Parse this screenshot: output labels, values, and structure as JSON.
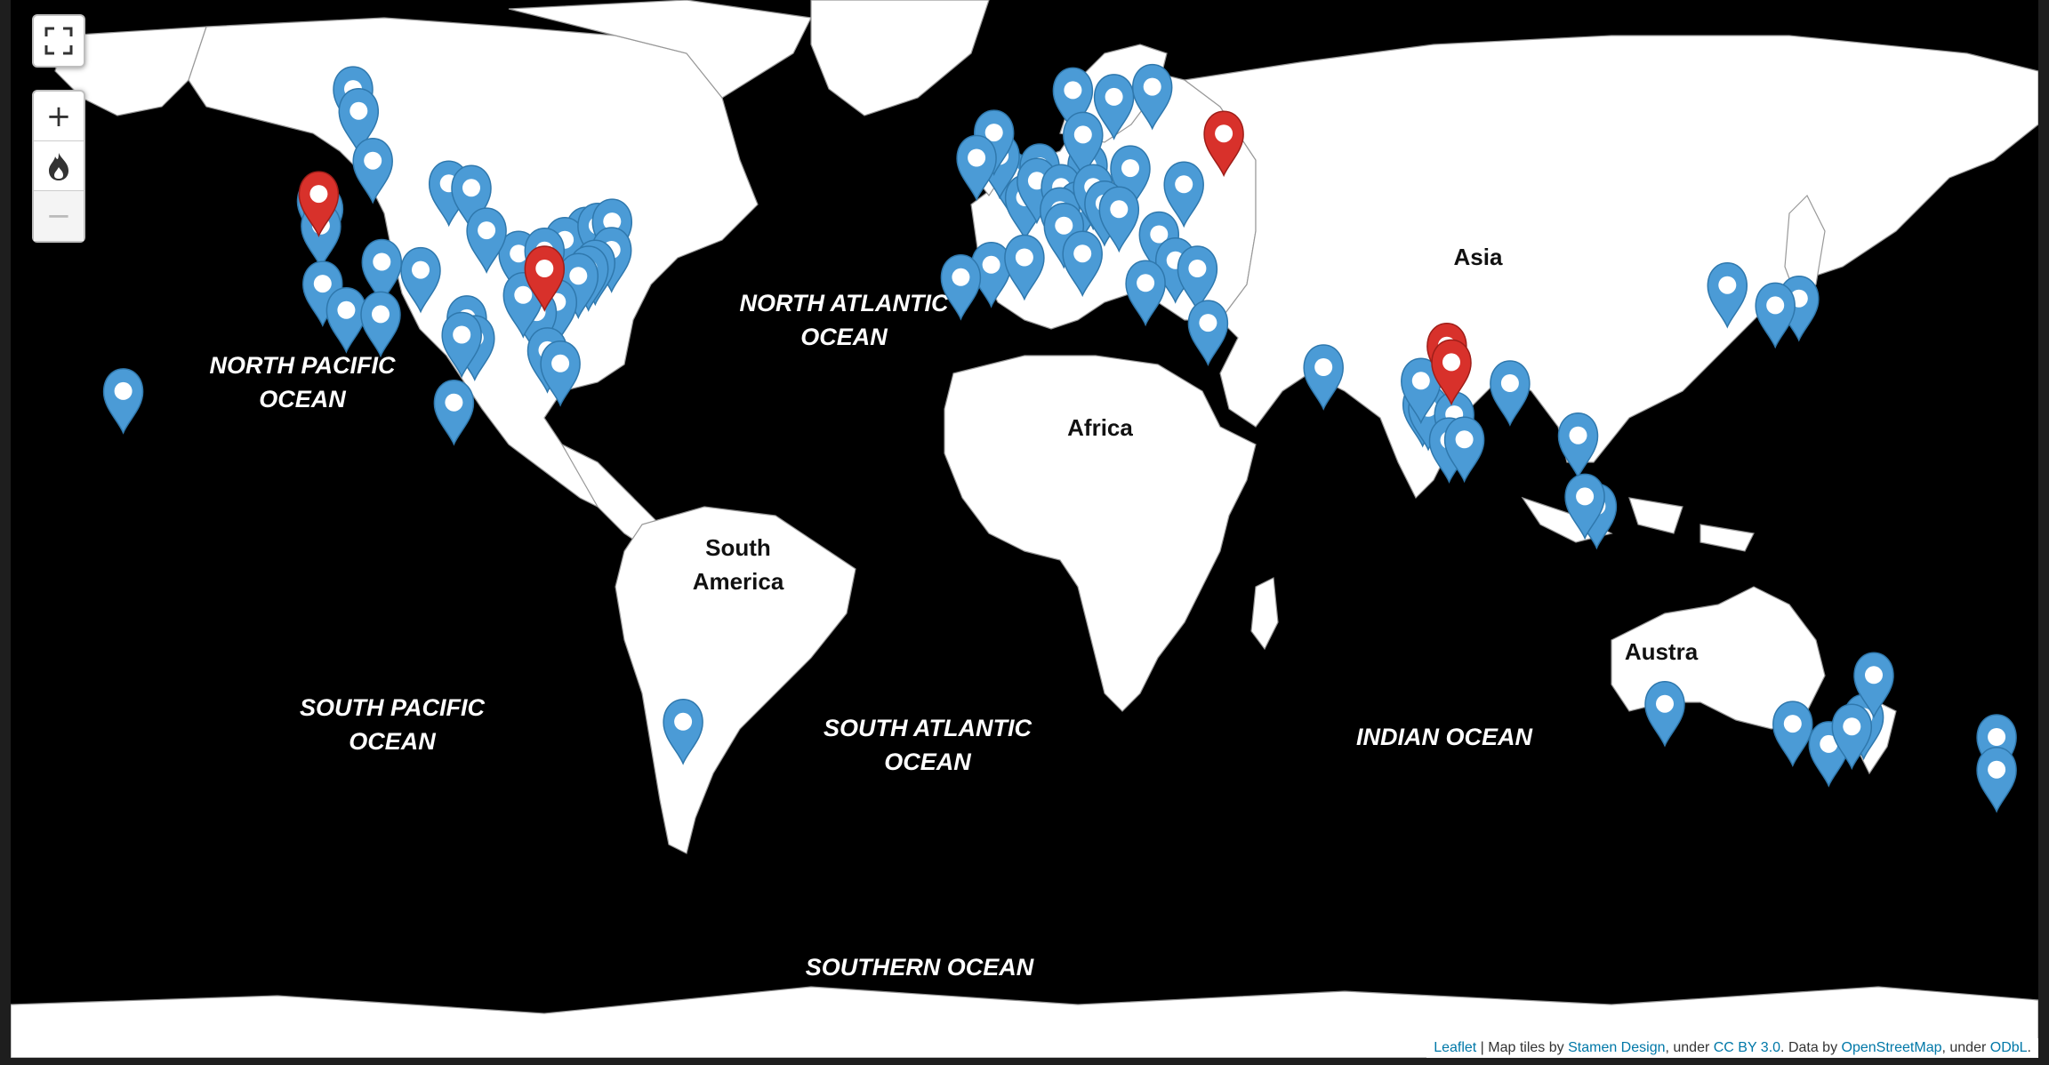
{
  "map": {
    "ocean_labels": [
      {
        "lines": [
          "NORTH ATLANTIC",
          "OCEAN"
        ]
      },
      {
        "lines": [
          "NORTH PACIFIC",
          "OCEAN"
        ]
      },
      {
        "lines": [
          "SOUTH PACIFIC",
          "OCEAN"
        ]
      },
      {
        "lines": [
          "SOUTH ATLANTIC",
          "OCEAN"
        ]
      },
      {
        "lines": [
          "INDIAN OCEAN"
        ]
      },
      {
        "lines": [
          "SOUTHERN OCEAN"
        ]
      }
    ],
    "continent_labels": [
      {
        "lines": [
          "Asia"
        ]
      },
      {
        "lines": [
          "Africa"
        ]
      },
      {
        "lines": [
          "South",
          "America"
        ]
      },
      {
        "lines": [
          "Austra"
        ]
      }
    ],
    "marker_colors": {
      "blue": "#4b9bd6",
      "red": "#d8312b"
    },
    "markers": [
      {
        "lat": 49.3,
        "lon": -123.1,
        "color": "red"
      },
      {
        "lat": 39.9,
        "lon": -83.0,
        "color": "red"
      },
      {
        "lat": 55.8,
        "lon": 37.6,
        "color": "red"
      },
      {
        "lat": 28.6,
        "lon": 77.2,
        "color": "red"
      },
      {
        "lat": 26.0,
        "lon": 78.0,
        "color": "red"
      },
      {
        "lat": 60.0,
        "lon": -117.0,
        "color": "blue"
      },
      {
        "lat": 58.0,
        "lon": -116.0,
        "color": "blue"
      },
      {
        "lat": 53.0,
        "lon": -113.5,
        "color": "blue"
      },
      {
        "lat": 50.5,
        "lon": -100.0,
        "color": "blue"
      },
      {
        "lat": 50.0,
        "lon": -96.0,
        "color": "blue"
      },
      {
        "lat": 48.5,
        "lon": -123.4,
        "color": "blue"
      },
      {
        "lat": 47.6,
        "lon": -122.3,
        "color": "blue"
      },
      {
        "lat": 45.5,
        "lon": -122.7,
        "color": "blue"
      },
      {
        "lat": 45.0,
        "lon": -75.7,
        "color": "blue"
      },
      {
        "lat": 43.7,
        "lon": -79.4,
        "color": "blue"
      },
      {
        "lat": 45.5,
        "lon": -73.6,
        "color": "blue"
      },
      {
        "lat": 46.0,
        "lon": -71.0,
        "color": "blue"
      },
      {
        "lat": 42.4,
        "lon": -71.1,
        "color": "blue"
      },
      {
        "lat": 40.7,
        "lon": -74.0,
        "color": "blue"
      },
      {
        "lat": 39.9,
        "lon": -75.2,
        "color": "blue"
      },
      {
        "lat": 38.9,
        "lon": -77.0,
        "color": "blue"
      },
      {
        "lat": 41.9,
        "lon": -87.6,
        "color": "blue"
      },
      {
        "lat": 44.9,
        "lon": -93.3,
        "color": "blue"
      },
      {
        "lat": 42.3,
        "lon": -83.0,
        "color": "blue"
      },
      {
        "lat": 39.7,
        "lon": -105.0,
        "color": "blue"
      },
      {
        "lat": 40.8,
        "lon": -111.9,
        "color": "blue"
      },
      {
        "lat": 37.8,
        "lon": -122.4,
        "color": "blue"
      },
      {
        "lat": 34.0,
        "lon": -118.2,
        "color": "blue"
      },
      {
        "lat": 33.4,
        "lon": -112.1,
        "color": "blue"
      },
      {
        "lat": 32.8,
        "lon": -96.8,
        "color": "blue"
      },
      {
        "lat": 29.8,
        "lon": -95.4,
        "color": "blue"
      },
      {
        "lat": 35.2,
        "lon": -80.8,
        "color": "blue"
      },
      {
        "lat": 33.7,
        "lon": -84.4,
        "color": "blue"
      },
      {
        "lat": 30.3,
        "lon": -97.7,
        "color": "blue"
      },
      {
        "lat": 36.2,
        "lon": -86.8,
        "color": "blue"
      },
      {
        "lat": 27.9,
        "lon": -82.5,
        "color": "blue"
      },
      {
        "lat": 25.8,
        "lon": -80.2,
        "color": "blue"
      },
      {
        "lat": 19.4,
        "lon": -99.1,
        "color": "blue"
      },
      {
        "lat": 21.3,
        "lon": -157.8,
        "color": "blue"
      },
      {
        "lat": -34.6,
        "lon": -58.4,
        "color": "blue"
      },
      {
        "lat": 51.5,
        "lon": -0.1,
        "color": "blue"
      },
      {
        "lat": 53.5,
        "lon": -2.2,
        "color": "blue"
      },
      {
        "lat": 55.9,
        "lon": -3.2,
        "color": "blue"
      },
      {
        "lat": 53.3,
        "lon": -6.3,
        "color": "blue"
      },
      {
        "lat": 48.9,
        "lon": 2.3,
        "color": "blue"
      },
      {
        "lat": 52.4,
        "lon": 4.9,
        "color": "blue"
      },
      {
        "lat": 50.8,
        "lon": 4.4,
        "color": "blue"
      },
      {
        "lat": 52.5,
        "lon": 13.4,
        "color": "blue"
      },
      {
        "lat": 50.1,
        "lon": 8.7,
        "color": "blue"
      },
      {
        "lat": 48.1,
        "lon": 11.6,
        "color": "blue"
      },
      {
        "lat": 47.4,
        "lon": 8.5,
        "color": "blue"
      },
      {
        "lat": 45.5,
        "lon": 9.2,
        "color": "blue"
      },
      {
        "lat": 41.9,
        "lon": 12.5,
        "color": "blue"
      },
      {
        "lat": 40.4,
        "lon": -3.7,
        "color": "blue"
      },
      {
        "lat": 41.4,
        "lon": 2.2,
        "color": "blue"
      },
      {
        "lat": 38.7,
        "lon": -9.1,
        "color": "blue"
      },
      {
        "lat": 59.3,
        "lon": 18.1,
        "color": "blue"
      },
      {
        "lat": 59.9,
        "lon": 10.8,
        "color": "blue"
      },
      {
        "lat": 55.7,
        "lon": 12.6,
        "color": "blue"
      },
      {
        "lat": 60.2,
        "lon": 24.9,
        "color": "blue"
      },
      {
        "lat": 52.2,
        "lon": 21.0,
        "color": "blue"
      },
      {
        "lat": 50.1,
        "lon": 14.4,
        "color": "blue"
      },
      {
        "lat": 48.2,
        "lon": 16.4,
        "color": "blue"
      },
      {
        "lat": 47.5,
        "lon": 19.0,
        "color": "blue"
      },
      {
        "lat": 44.4,
        "lon": 26.1,
        "color": "blue"
      },
      {
        "lat": 50.4,
        "lon": 30.5,
        "color": "blue"
      },
      {
        "lat": 41.0,
        "lon": 29.0,
        "color": "blue"
      },
      {
        "lat": 39.9,
        "lon": 32.9,
        "color": "blue"
      },
      {
        "lat": 37.9,
        "lon": 23.7,
        "color": "blue"
      },
      {
        "lat": 32.1,
        "lon": 34.8,
        "color": "blue"
      },
      {
        "lat": 25.2,
        "lon": 55.3,
        "color": "blue"
      },
      {
        "lat": 19.1,
        "lon": 72.9,
        "color": "blue"
      },
      {
        "lat": 18.5,
        "lon": 73.9,
        "color": "blue"
      },
      {
        "lat": 17.4,
        "lon": 78.5,
        "color": "blue"
      },
      {
        "lat": 12.97,
        "lon": 77.6,
        "color": "blue"
      },
      {
        "lat": 13.1,
        "lon": 80.3,
        "color": "blue"
      },
      {
        "lat": 22.6,
        "lon": 88.4,
        "color": "blue"
      },
      {
        "lat": 23.0,
        "lon": 72.6,
        "color": "blue"
      },
      {
        "lat": 13.8,
        "lon": 100.5,
        "color": "blue"
      },
      {
        "lat": 1.35,
        "lon": 103.8,
        "color": "blue"
      },
      {
        "lat": 3.1,
        "lon": 101.7,
        "color": "blue"
      },
      {
        "lat": 35.7,
        "lon": 139.7,
        "color": "blue"
      },
      {
        "lat": 34.7,
        "lon": 135.5,
        "color": "blue"
      },
      {
        "lat": 37.6,
        "lon": 127.0,
        "color": "blue"
      },
      {
        "lat": -31.95,
        "lon": 115.9,
        "color": "blue"
      },
      {
        "lat": -33.9,
        "lon": 151.2,
        "color": "blue"
      },
      {
        "lat": -37.8,
        "lon": 145.0,
        "color": "blue"
      },
      {
        "lat": -34.9,
        "lon": 138.6,
        "color": "blue"
      },
      {
        "lat": -27.5,
        "lon": 153.0,
        "color": "blue"
      },
      {
        "lat": -35.3,
        "lon": 149.1,
        "color": "blue"
      },
      {
        "lat": -36.8,
        "lon": 174.8,
        "color": "blue"
      },
      {
        "lat": -41.3,
        "lon": 174.8,
        "color": "blue"
      }
    ]
  },
  "controls": {
    "fullscreen_icon": "fullscreen-icon",
    "zoom_in": "+",
    "heat_icon": "flame-icon",
    "zoom_out": "−"
  },
  "attribution": {
    "leaflet": "Leaflet",
    "sep": " | Map tiles by ",
    "stamen": "Stamen Design",
    "under1": ", under ",
    "ccby": "CC BY 3.0",
    "data_by": ". Data by ",
    "osm": "OpenStreetMap",
    "under2": ", under ",
    "odbl": "ODbL",
    "end": "."
  }
}
